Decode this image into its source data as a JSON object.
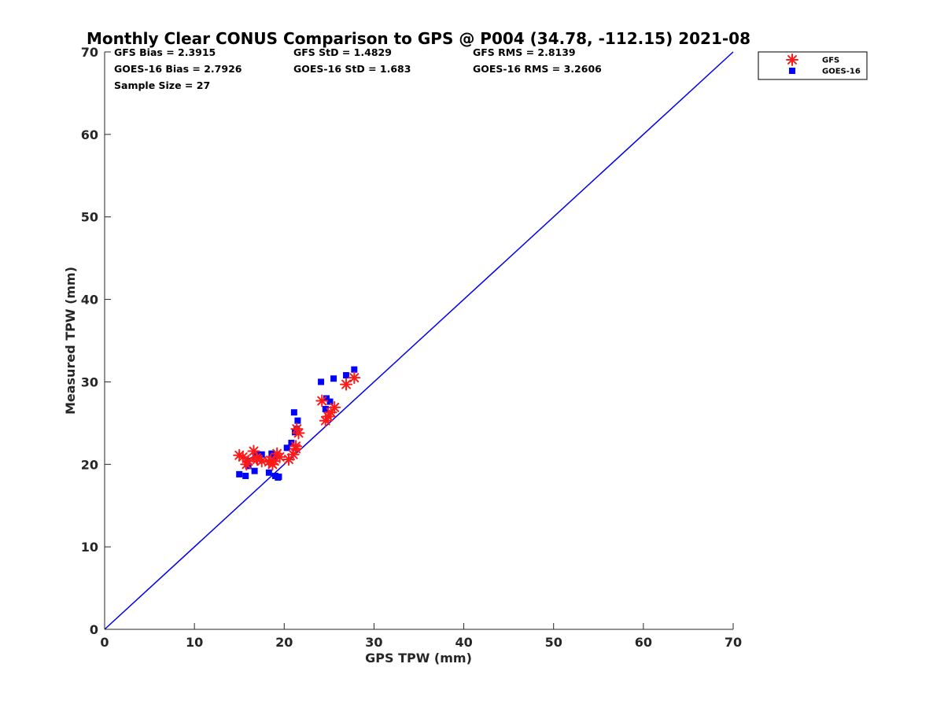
{
  "chart_data": {
    "type": "scatter",
    "title": "Monthly Clear CONUS Comparison to GPS @ P004 (34.78, -112.15) 2021-08",
    "xlabel": "GPS TPW (mm)",
    "ylabel": "Measured TPW (mm)",
    "xlim": [
      0,
      70
    ],
    "ylim": [
      0,
      70
    ],
    "xticks": [
      "0",
      "10",
      "20",
      "30",
      "40",
      "50",
      "60",
      "70"
    ],
    "yticks": [
      "0",
      "10",
      "20",
      "30",
      "40",
      "50",
      "60",
      "70"
    ],
    "grid": false,
    "legend_position": "outside-top-right",
    "reference_line": {
      "x": [
        0,
        70
      ],
      "y": [
        0,
        70
      ],
      "color": "#0000ee"
    },
    "stats": [
      {
        "key": "gfs_bias",
        "text": "GFS Bias = 2.3915"
      },
      {
        "key": "gfs_std",
        "text": "GFS StD = 1.4829"
      },
      {
        "key": "gfs_rms",
        "text": "GFS RMS = 2.8139"
      },
      {
        "key": "goes_bias",
        "text": "GOES-16 Bias = 2.7926"
      },
      {
        "key": "goes_std",
        "text": "GOES-16 StD = 1.683"
      },
      {
        "key": "goes_rms",
        "text": "GOES-16 RMS = 3.2606"
      },
      {
        "key": "sample",
        "text": "Sample Size = 27"
      }
    ],
    "series": [
      {
        "name": "GFS",
        "marker": "asterisk",
        "color": "#ff1a1a",
        "x": [
          15.0,
          15.8,
          16.0,
          16.6,
          16.9,
          17.5,
          18.3,
          18.7,
          18.9,
          19.2,
          19.5,
          20.5,
          21.0,
          21.3,
          21.3,
          21.4,
          21.6,
          24.2,
          24.6,
          24.9,
          25.2,
          25.6,
          26.9,
          27.8,
          15.4,
          17.0,
          18.5
        ],
        "y": [
          21.1,
          20.0,
          20.4,
          21.6,
          20.8,
          20.4,
          20.3,
          20.0,
          20.4,
          21.3,
          20.9,
          20.6,
          21.2,
          21.9,
          22.2,
          24.3,
          23.8,
          27.7,
          25.3,
          25.8,
          26.3,
          26.9,
          29.7,
          30.5,
          20.9,
          20.6,
          20.5
        ]
      },
      {
        "name": "GOES-16",
        "marker": "square",
        "color": "#0000ff",
        "x": [
          15.0,
          15.7,
          15.9,
          16.0,
          16.7,
          17.0,
          17.5,
          18.3,
          18.6,
          19.0,
          19.3,
          19.4,
          20.3,
          20.8,
          21.1,
          21.2,
          21.4,
          21.5,
          24.1,
          24.6,
          24.7,
          25.1,
          25.5,
          26.9,
          27.8,
          16.8,
          18.8
        ],
        "y": [
          18.8,
          18.6,
          20.4,
          19.8,
          19.2,
          21.2,
          21.2,
          19.0,
          21.3,
          18.6,
          18.4,
          18.5,
          22.0,
          22.6,
          26.3,
          23.9,
          24.3,
          25.3,
          30.0,
          26.7,
          28.0,
          27.6,
          30.4,
          30.8,
          31.5,
          21.0,
          21.0
        ]
      }
    ]
  }
}
